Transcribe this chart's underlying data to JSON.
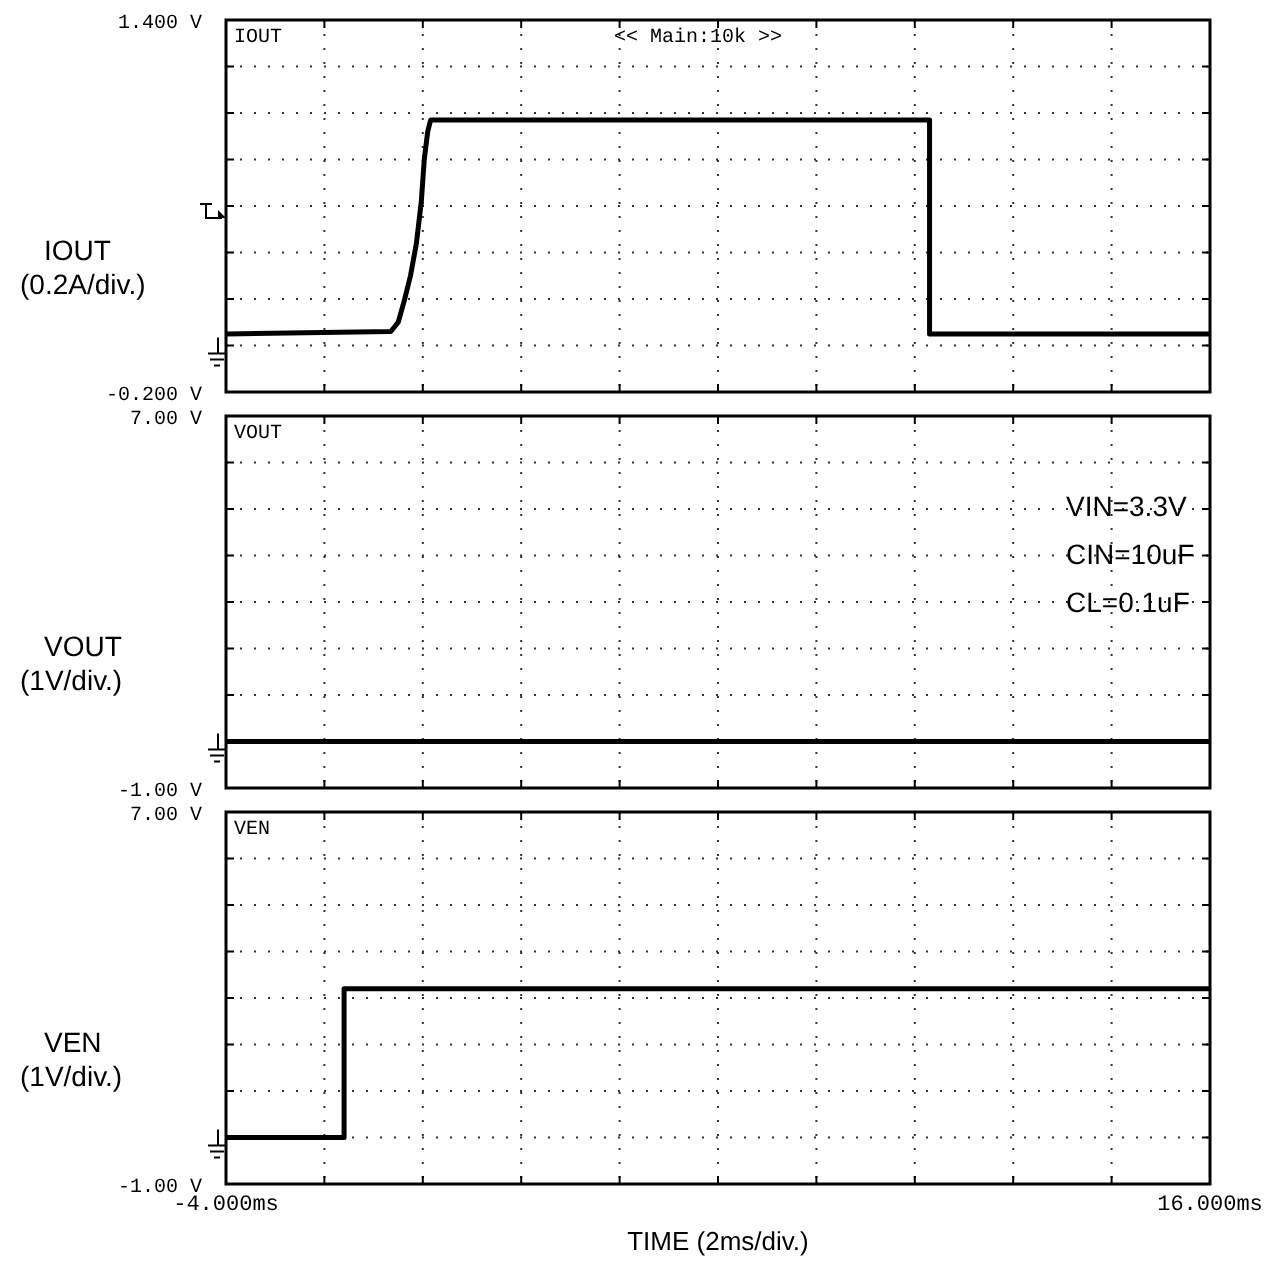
{
  "chart_data": [
    {
      "type": "line",
      "ylabel": "IOUT\n(0.2A/div.)",
      "annotations": [
        "<< Main:10k >>"
      ],
      "grid": true,
      "tick_labels": "y",
      "xlim": [
        -4,
        16
      ],
      "xticks": [
        {
          "value": -4,
          "label": null
        },
        {
          "value": -2,
          "label": null
        },
        {
          "value": 0,
          "label": null
        },
        {
          "value": 2,
          "label": null
        },
        {
          "value": 4,
          "label": null
        },
        {
          "value": 6,
          "label": null
        },
        {
          "value": 8,
          "label": null
        },
        {
          "value": 10,
          "label": null
        },
        {
          "value": 12,
          "label": null
        },
        {
          "value": 14,
          "label": null
        },
        {
          "value": 16,
          "label": null
        }
      ],
      "ylim": [
        -0.2,
        1.4
      ],
      "yticks": [
        {
          "value": -0.2,
          "label": "-0.200 V"
        },
        {
          "value": 0,
          "label": null
        },
        {
          "value": 0.2,
          "label": null
        },
        {
          "value": 0.4,
          "label": null
        },
        {
          "value": 0.6,
          "label": null
        },
        {
          "value": 0.8,
          "label": null
        },
        {
          "value": 1,
          "label": null
        },
        {
          "value": 1.2,
          "label": null
        },
        {
          "value": 1.4,
          "label": "1.400 V"
        }
      ],
      "series": [
        {
          "name": "IOUT",
          "color": "#000000",
          "x": [
            -4,
            -0.65,
            -0.5,
            -0.38,
            -0.25,
            -0.13,
            -0.03,
            0.03,
            0.1,
            0.16,
            10.3,
            10.3,
            16
          ],
          "values": [
            0.05,
            0.06,
            0.1,
            0.19,
            0.3,
            0.44,
            0.62,
            0.8,
            0.92,
            0.97,
            0.97,
            0.05,
            0.05
          ]
        }
      ]
    },
    {
      "type": "line",
      "ylabel": "VOUT\n(1V/div.)",
      "annotations": [
        "VIN=3.3V",
        "CIN=10uF",
        "CL=0.1uF"
      ],
      "grid": true,
      "tick_labels": "y",
      "xlim": [
        -4,
        16
      ],
      "xticks": [
        {
          "value": -4,
          "label": null
        },
        {
          "value": -2,
          "label": null
        },
        {
          "value": 0,
          "label": null
        },
        {
          "value": 2,
          "label": null
        },
        {
          "value": 4,
          "label": null
        },
        {
          "value": 6,
          "label": null
        },
        {
          "value": 8,
          "label": null
        },
        {
          "value": 10,
          "label": null
        },
        {
          "value": 12,
          "label": null
        },
        {
          "value": 14,
          "label": null
        },
        {
          "value": 16,
          "label": null
        }
      ],
      "ylim": [
        -1,
        7
      ],
      "yticks": [
        {
          "value": -1,
          "label": "-1.00 V"
        },
        {
          "value": 0,
          "label": null
        },
        {
          "value": 1,
          "label": null
        },
        {
          "value": 2,
          "label": null
        },
        {
          "value": 3,
          "label": null
        },
        {
          "value": 4,
          "label": null
        },
        {
          "value": 5,
          "label": null
        },
        {
          "value": 6,
          "label": null
        },
        {
          "value": 7,
          "label": "7.00 V"
        }
      ],
      "series": [
        {
          "name": "VOUT",
          "color": "#000000",
          "x": [
            -4,
            16
          ],
          "values": [
            0,
            0
          ]
        }
      ]
    },
    {
      "type": "line",
      "ylabel": "VEN\n(1V/div.)",
      "xlabel": "TIME (2ms/div.)",
      "grid": true,
      "xlim": [
        -4,
        16
      ],
      "xticks": [
        {
          "value": -4,
          "label": "-4.000ms"
        },
        {
          "value": -2,
          "label": null
        },
        {
          "value": 0,
          "label": null
        },
        {
          "value": 2,
          "label": null
        },
        {
          "value": 4,
          "label": null
        },
        {
          "value": 6,
          "label": null
        },
        {
          "value": 8,
          "label": null
        },
        {
          "value": 10,
          "label": null
        },
        {
          "value": 12,
          "label": null
        },
        {
          "value": 14,
          "label": null
        },
        {
          "value": 16,
          "label": "16.000ms"
        }
      ],
      "ylim": [
        -1,
        7
      ],
      "yticks": [
        {
          "value": -1,
          "label": "-1.00 V"
        },
        {
          "value": 0,
          "label": null
        },
        {
          "value": 1,
          "label": null
        },
        {
          "value": 2,
          "label": null
        },
        {
          "value": 3,
          "label": null
        },
        {
          "value": 4,
          "label": null
        },
        {
          "value": 5,
          "label": null
        },
        {
          "value": 6,
          "label": null
        },
        {
          "value": 7,
          "label": "7.00 V"
        }
      ],
      "series": [
        {
          "name": "VEN",
          "color": "#000000",
          "x": [
            -4,
            -1.6,
            -1.6,
            16
          ],
          "values": [
            0,
            0,
            3.2,
            3.2
          ]
        }
      ]
    }
  ]
}
